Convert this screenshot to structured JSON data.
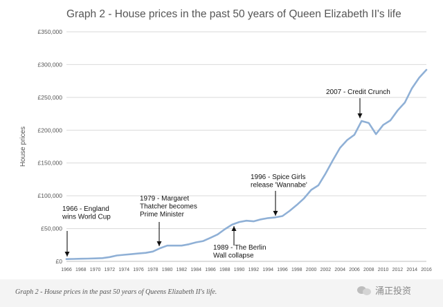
{
  "chart_data": {
    "type": "line",
    "title": "Graph 2 - House prices in the past 50 years of Queen Elizabeth II's life",
    "ylabel": "House prices",
    "xlabel": "",
    "ylim": [
      0,
      350000
    ],
    "xlim": [
      1966,
      2016
    ],
    "y_ticks": [
      "£0",
      "£50,000",
      "£100,000",
      "£150,000",
      "£200,000",
      "£250,000",
      "£300,000",
      "£350,000"
    ],
    "x_ticks": [
      "1966",
      "1968",
      "1970",
      "1972",
      "1974",
      "1976",
      "1978",
      "1980",
      "1982",
      "1984",
      "1986",
      "1988",
      "1990",
      "1992",
      "1994",
      "1996",
      "1998",
      "2000",
      "2002",
      "2004",
      "2006",
      "2008",
      "2010",
      "2012",
      "2014",
      "2016"
    ],
    "grid": "horizontal",
    "series": [
      {
        "color": "#8fb0d6",
        "x": [
          1966,
          1967,
          1968,
          1969,
          1970,
          1971,
          1972,
          1973,
          1974,
          1975,
          1976,
          1977,
          1978,
          1979,
          1980,
          1981,
          1982,
          1983,
          1984,
          1985,
          1986,
          1987,
          1988,
          1989,
          1990,
          1991,
          1992,
          1993,
          1994,
          1995,
          1996,
          1997,
          1998,
          1999,
          2000,
          2001,
          2002,
          2003,
          2004,
          2005,
          2006,
          2007,
          2008,
          2009,
          2010,
          2011,
          2012,
          2013,
          2014,
          2015,
          2016
        ],
        "values": [
          3500,
          3700,
          4000,
          4200,
          4500,
          5000,
          6500,
          9000,
          10000,
          11000,
          12000,
          13000,
          15000,
          20000,
          24000,
          24000,
          24000,
          26000,
          29000,
          31000,
          36000,
          41000,
          49000,
          56000,
          60000,
          62000,
          61000,
          64000,
          66000,
          67000,
          69000,
          77000,
          86000,
          96000,
          109000,
          116000,
          134000,
          154000,
          173000,
          185000,
          193000,
          214000,
          211000,
          194000,
          208000,
          215000,
          230000,
          242000,
          264000,
          280000,
          292000
        ]
      }
    ],
    "annotations": [
      {
        "lines": [
          "1966 - England",
          "wins World Cup"
        ],
        "x": 1966,
        "y": 3500
      },
      {
        "lines": [
          "1979 - Margaret",
          "Thatcher becomes",
          "Prime Minister"
        ],
        "x": 1979,
        "y": 20000
      },
      {
        "lines": [
          "1989 - The Berlin",
          "Wall collapse"
        ],
        "x": 1989,
        "y": 56000
      },
      {
        "lines": [
          "1996 - Spice Girls",
          "release 'Wannabe'"
        ],
        "x": 1996,
        "y": 69000
      },
      {
        "lines": [
          "2007 - Credit Crunch"
        ],
        "x": 2007,
        "y": 214000
      }
    ]
  },
  "caption": "Graph 2 - House prices in the past 50 years of Queens Elizabeth II's life.",
  "watermark": "涌正投资"
}
